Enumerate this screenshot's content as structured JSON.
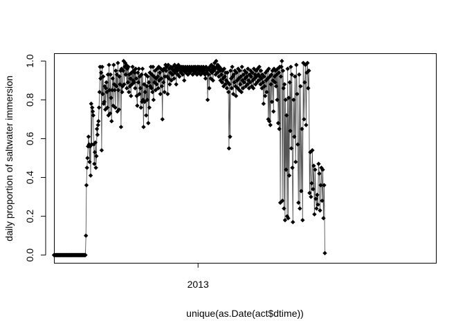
{
  "chart_data": {
    "type": "line",
    "title": "",
    "xlabel": "unique(as.Date(act$dtime))",
    "ylabel": "daily proportion of saltwater immersion",
    "x_start_date": "2012-04-01",
    "x_end_date": "2014-03-31",
    "x_ticks": [
      {
        "date": "2013-01-01",
        "label": "2013"
      }
    ],
    "y_ticks": [
      {
        "value": 0.0,
        "label": "0.0"
      },
      {
        "value": 0.2,
        "label": "0.2"
      },
      {
        "value": 0.4,
        "label": "0.4"
      },
      {
        "value": 0.6,
        "label": "0.6"
      },
      {
        "value": 0.8,
        "label": "0.8"
      },
      {
        "value": 1.0,
        "label": "1.0"
      }
    ],
    "ylim": [
      -0.04,
      1.04
    ],
    "marker": "filled-diamond",
    "line_color": "#555555",
    "marker_color": "#000000",
    "series": [
      {
        "segments": [
          {
            "from": "2012-04-01",
            "to": "2012-05-31",
            "values": [
              0.0,
              0.0
            ]
          },
          {
            "from": "2012-06-01",
            "to": "2012-06-30",
            "values": [
              0.1,
              0.36,
              0.45,
              0.5,
              0.56,
              0.61,
              0.57,
              0.48,
              0.56,
              0.41,
              0.78,
              0.57,
              0.76,
              0.74,
              0.72,
              0.57,
              0.47,
              0.53,
              0.58,
              0.45,
              0.51,
              0.65,
              0.62,
              0.67,
              0.69,
              0.76,
              0.84,
              0.97,
              0.91,
              0.94
            ]
          },
          {
            "from": "2012-07-01",
            "to": "2012-08-31",
            "values": [
              0.54,
              0.97,
              0.83,
              0.92,
              0.78,
              0.79,
              0.87,
              0.75,
              0.86,
              0.89,
              0.84,
              0.76,
              0.93,
              0.72,
              0.98,
              0.85,
              0.73,
              0.93,
              0.81,
              0.69,
              0.85,
              0.91,
              0.77,
              0.98,
              0.88,
              0.85,
              0.76,
              0.95,
              0.87,
              0.93,
              0.74,
              0.99,
              0.85,
              0.75,
              0.92,
              0.88,
              0.95,
              0.66,
              0.96,
              0.84,
              0.87,
              0.95,
              1.0,
              0.88,
              0.97,
              0.99,
              0.93,
              0.98,
              0.86,
              0.96,
              0.89,
              0.97,
              0.84,
              0.93,
              0.87,
              0.91,
              0.82,
              0.94,
              0.88,
              0.97,
              0.9,
              0.95
            ]
          },
          {
            "from": "2012-09-01",
            "to": "2012-10-31",
            "values": [
              0.89,
              0.94,
              0.86,
              0.96,
              0.91,
              0.82,
              0.77,
              0.94,
              0.89,
              0.96,
              0.83,
              0.92,
              0.86,
              0.76,
              0.93,
              0.79,
              0.96,
              0.8,
              0.66,
              0.88,
              0.79,
              0.84,
              0.93,
              0.72,
              0.87,
              0.8,
              0.92,
              0.68,
              0.89,
              0.76,
              0.94,
              0.87,
              0.97,
              0.86,
              0.93,
              0.84,
              0.97,
              0.8,
              0.92,
              0.89,
              0.95,
              0.85,
              0.91,
              0.88,
              0.96,
              0.92,
              0.86,
              0.97,
              0.9,
              0.94,
              0.83,
              0.96,
              0.91,
              0.87,
              0.7,
              0.95,
              0.89,
              0.96,
              0.84,
              0.92,
              0.98
            ]
          },
          {
            "from": "2012-11-01",
            "to": "2012-12-31",
            "values": [
              0.95,
              0.97,
              0.92,
              0.83,
              0.98,
              0.91,
              0.96,
              0.88,
              0.94,
              0.97,
              0.9,
              0.96,
              0.93,
              0.97,
              0.95,
              0.91,
              0.98,
              0.94,
              0.96,
              0.88,
              0.97,
              0.95,
              0.93,
              0.98,
              0.96,
              0.92,
              0.97,
              0.95,
              0.94,
              0.97,
              0.96,
              0.93,
              0.97,
              0.95,
              0.9,
              0.96,
              0.97,
              0.94,
              0.96,
              0.95,
              0.97,
              0.93,
              0.96,
              0.95,
              0.97,
              0.94,
              0.96,
              0.95,
              0.97,
              0.96,
              0.93,
              0.95,
              0.97,
              0.96,
              0.94,
              0.97,
              0.95,
              0.96,
              0.93,
              0.97
            ]
          },
          {
            "from": "2013-01-01",
            "to": "2013-02-28",
            "values": [
              0.96,
              0.94,
              0.97,
              0.95,
              0.96,
              0.93,
              0.97,
              0.95,
              0.96,
              0.94,
              0.97,
              0.95,
              0.96,
              0.93,
              0.91,
              0.97,
              0.94,
              0.95,
              0.8,
              0.96,
              0.93,
              0.86,
              0.97,
              0.95,
              0.91,
              0.98,
              0.94,
              0.96,
              0.9,
              0.97,
              0.95,
              0.99,
              0.96,
              0.93,
              1.0,
              0.97,
              0.94,
              0.98,
              0.96,
              0.92,
              0.97,
              0.95,
              0.9,
              0.96,
              0.93,
              0.89,
              0.95,
              0.91,
              0.87,
              0.96,
              0.92,
              0.88,
              0.94,
              0.9,
              0.86,
              0.94,
              0.89,
              0.84
            ]
          },
          {
            "from": "2013-03-01",
            "to": "2013-04-30",
            "values": [
              0.55,
              0.88,
              0.61,
              0.95,
              0.91,
              0.86,
              0.97,
              0.92,
              0.83,
              0.93,
              0.89,
              0.95,
              0.87,
              0.82,
              0.94,
              0.9,
              0.86,
              0.96,
              0.91,
              0.85,
              0.95,
              0.88,
              0.92,
              0.84,
              0.97,
              0.9,
              0.86,
              0.93,
              0.89,
              0.95,
              0.91,
              0.87,
              0.94,
              0.92,
              0.88,
              0.96,
              0.9,
              0.86,
              0.93,
              0.89,
              0.95,
              0.92,
              0.87,
              0.94,
              0.9,
              0.86,
              0.96,
              0.91,
              0.93,
              0.88,
              0.95,
              0.92,
              0.89,
              0.96,
              0.93,
              0.9,
              0.97,
              0.92,
              0.88
            ]
          },
          {
            "from": "2013-05-01",
            "to": "2013-06-30",
            "values": [
              0.95,
              0.91,
              0.86,
              0.93,
              0.89,
              0.78,
              0.92,
              0.87,
              0.82,
              0.94,
              0.9,
              0.84,
              0.95,
              0.91,
              0.7,
              0.96,
              0.69,
              0.92,
              0.67,
              0.88,
              0.93,
              0.79,
              0.95,
              0.9,
              0.74,
              0.96,
              0.92,
              0.89,
              0.95,
              0.87,
              0.93,
              0.8,
              0.96,
              0.68,
              0.94,
              0.65,
              0.97,
              0.27,
              0.92,
              0.97,
              1.0,
              0.28,
              0.95,
              0.86,
              0.24,
              0.88,
              0.18,
              0.8,
              0.44,
              0.72,
              0.2,
              0.96,
              0.19,
              0.81,
              0.41,
              0.89,
              0.64,
              0.97,
              0.55,
              0.93,
              0.45
            ]
          },
          {
            "from": "2013-07-01",
            "to": "2013-08-31",
            "values": [
              0.17,
              0.8,
              0.61,
              0.92,
              0.48,
              0.98,
              0.83,
              0.57,
              0.27,
              0.93,
              0.24,
              0.87,
              0.33,
              0.65,
              0.18,
              0.99,
              0.7,
              0.89,
              0.98,
              0.67,
              0.94,
              0.99,
              0.86,
              0.95,
              0.32,
              0.53,
              0.3,
              0.37,
              0.54,
              0.34,
              0.46,
              0.21,
              0.44,
              0.29,
              0.24,
              0.31,
              0.26,
              0.47,
              0.42,
              0.23,
              0.36,
              0.45,
              0.28,
              0.44,
              0.19,
              0.36,
              0.01
            ]
          }
        ]
      }
    ]
  }
}
